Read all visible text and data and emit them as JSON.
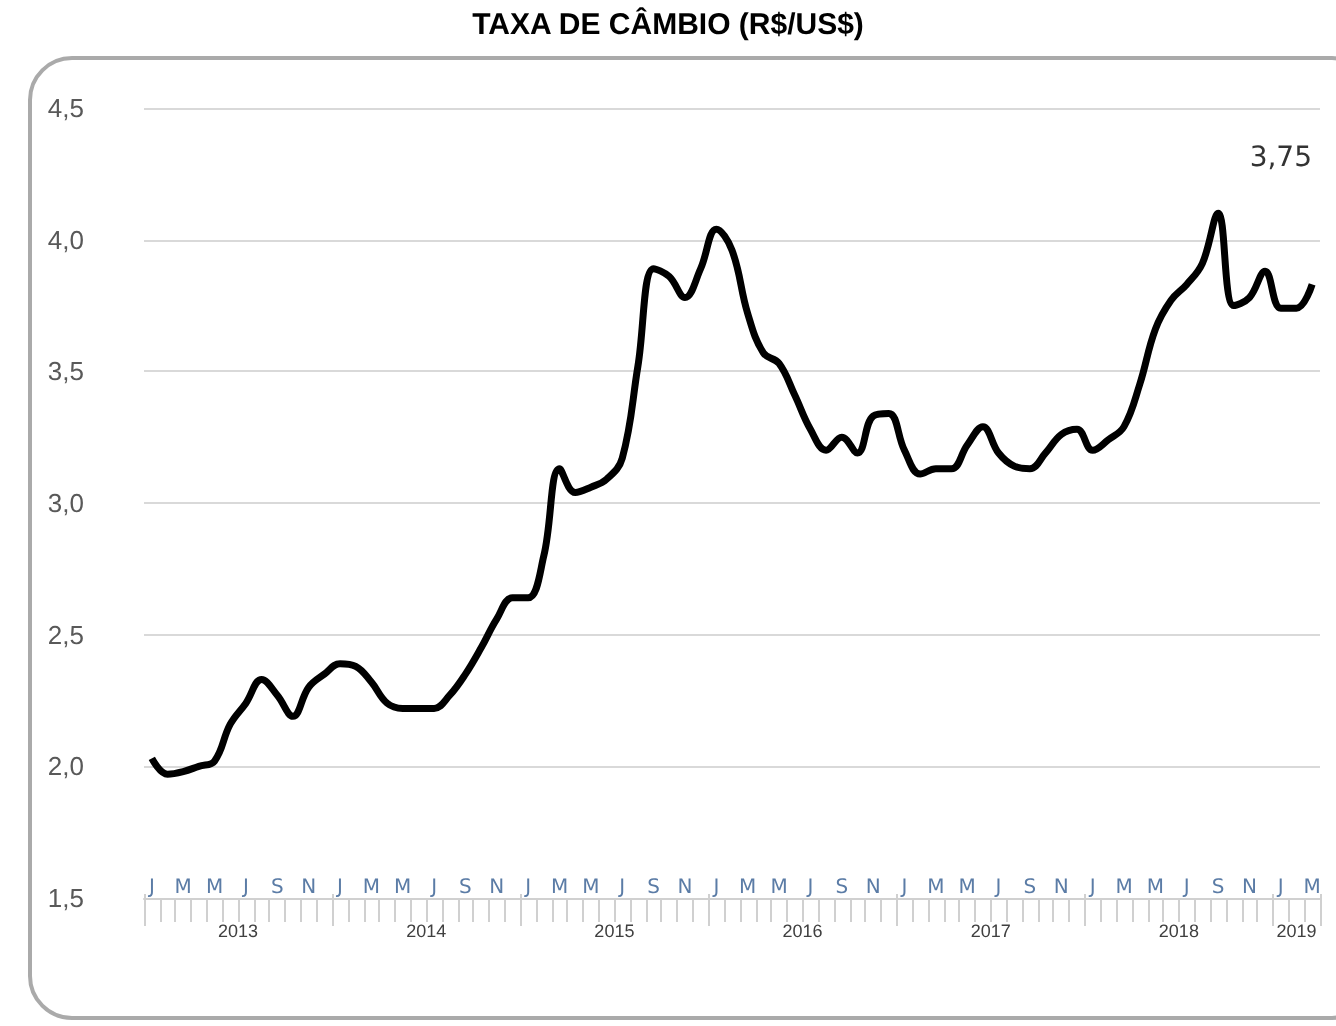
{
  "chart_data": {
    "type": "line",
    "title": "TAXA DE CÂMBIO (R$/US$)",
    "categories": [
      "J",
      null,
      "M",
      null,
      "M",
      null,
      "J",
      null,
      "S",
      null,
      "N",
      null,
      "J",
      null,
      "M",
      null,
      "M",
      null,
      "J",
      null,
      "S",
      null,
      "N",
      null,
      "J",
      null,
      "M",
      null,
      "M",
      null,
      "J",
      null,
      "S",
      null,
      "N",
      null,
      "J",
      null,
      "M",
      null,
      "M",
      null,
      "J",
      null,
      "S",
      null,
      "N",
      null,
      "J",
      null,
      "M",
      null,
      "M",
      null,
      "J",
      null,
      "S",
      null,
      "N",
      null,
      "J",
      null,
      "M",
      null,
      "M",
      null,
      "J",
      null,
      "S",
      null,
      "N",
      null,
      "J",
      null,
      "M"
    ],
    "series": [
      {
        "color": "#000000",
        "values": [
          2.03,
          1.97,
          1.98,
          2.0,
          2.02,
          2.16,
          2.24,
          2.33,
          2.27,
          2.19,
          2.3,
          2.35,
          2.39,
          2.38,
          2.32,
          2.24,
          2.22,
          2.22,
          2.22,
          2.27,
          2.35,
          2.45,
          2.56,
          2.64,
          2.64,
          2.8,
          3.13,
          3.04,
          3.06,
          3.09,
          3.17,
          3.52,
          3.89,
          3.86,
          3.78,
          3.89,
          4.04,
          3.96,
          3.72,
          3.57,
          3.53,
          3.41,
          3.28,
          3.2,
          3.25,
          3.19,
          3.33,
          3.34,
          3.2,
          3.11,
          3.13,
          3.13,
          3.22,
          3.29,
          3.19,
          3.14,
          3.13,
          3.19,
          3.26,
          3.28,
          3.2,
          3.24,
          3.29,
          3.45,
          3.66,
          3.77,
          3.83,
          3.91,
          4.1,
          3.75,
          3.78,
          3.88,
          3.74,
          3.74,
          3.83
        ]
      }
    ],
    "ylim": [
      1.5,
      4.5
    ],
    "yticks": [
      {
        "value": 1.5,
        "label": "1,5"
      },
      {
        "value": 2,
        "label": "2,0"
      },
      {
        "value": 2.5,
        "label": "2,5"
      },
      {
        "value": 3,
        "label": "3,0"
      },
      {
        "value": 3.5,
        "label": "3,5"
      },
      {
        "value": 4,
        "label": "4,0"
      },
      {
        "value": 4.5,
        "label": "4,5"
      }
    ],
    "grid": "y",
    "marker": "none",
    "line_style": "solid",
    "annotations": [
      "3,75",
      "2013",
      "2014",
      "2015",
      "2016",
      "2017",
      "2018",
      "2019"
    ]
  }
}
